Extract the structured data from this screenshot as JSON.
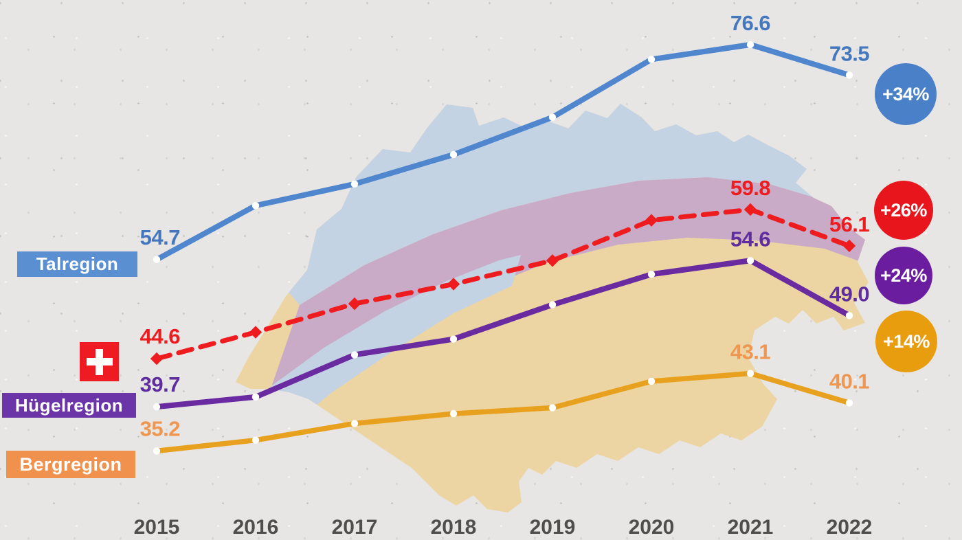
{
  "background_color": "#e7e6e4",
  "icons": {
    "swiss_flag_color": "#ee1b22",
    "swiss_flag_cross_color": "#ffffff"
  },
  "axis_tick_color": "#4e4e4e",
  "chart_data": {
    "type": "line",
    "title": "",
    "x_labels": [
      "2015",
      "2016",
      "2017",
      "2018",
      "2019",
      "2020",
      "2021",
      "2022"
    ],
    "grid": false,
    "y_axis_visible": false,
    "approx_y_range": [
      30,
      80
    ],
    "map_region_colors": {
      "tal": "#c3d3e3",
      "huegel": "#c9abc8",
      "berg": "#ecd5a2"
    },
    "series": [
      {
        "name": "Talregion",
        "legend_icon": "",
        "dash": false,
        "line_color": "#4f86cd",
        "label_color": "#4477bd",
        "badge_bg": "#5a90d2",
        "values": [
          54.7,
          60.2,
          62.4,
          65.4,
          69.2,
          75.1,
          76.6,
          73.5
        ],
        "labeled_indices": [
          0,
          6,
          7
        ],
        "visible_point_labels": [
          "54.7",
          "76.6",
          "73.5"
        ],
        "change_label": "+34%",
        "change_bg": "#4a80c8"
      },
      {
        "name": "Schweiz",
        "legend_icon": "swiss-flag-icon",
        "dash": true,
        "line_color": "#ee1b1f",
        "label_color": "#ee1b1f",
        "badge_bg": "#ee1b22",
        "values": [
          44.6,
          47.3,
          50.2,
          52.2,
          54.6,
          58.7,
          59.8,
          56.1
        ],
        "labeled_indices": [
          0,
          6,
          7
        ],
        "visible_point_labels": [
          "44.6",
          "59.8",
          "56.1"
        ],
        "change_label": "+26%",
        "change_bg": "#e8151d"
      },
      {
        "name": "Hügelregion",
        "legend_icon": "",
        "dash": false,
        "line_color": "#6a2aa0",
        "label_color": "#5f2d9e",
        "badge_bg": "#6b35a8",
        "values": [
          39.7,
          40.7,
          45.0,
          46.6,
          50.1,
          53.2,
          54.6,
          49.0
        ],
        "labeled_indices": [
          0,
          6,
          7
        ],
        "visible_point_labels": [
          "39.7",
          "54.6",
          "49.0"
        ],
        "change_label": "+24%",
        "change_bg": "#6a1d9e"
      },
      {
        "name": "Bergregion",
        "legend_icon": "",
        "dash": false,
        "line_color": "#e8a11e",
        "label_color": "#ef9751",
        "badge_bg": "#f0914d",
        "values": [
          35.2,
          36.3,
          38.0,
          39.0,
          39.6,
          42.3,
          43.1,
          40.1
        ],
        "labeled_indices": [
          0,
          6,
          7
        ],
        "visible_point_labels": [
          "35.2",
          "43.1",
          "40.1"
        ],
        "change_label": "+14%",
        "change_bg": "#e89d0e"
      }
    ]
  }
}
